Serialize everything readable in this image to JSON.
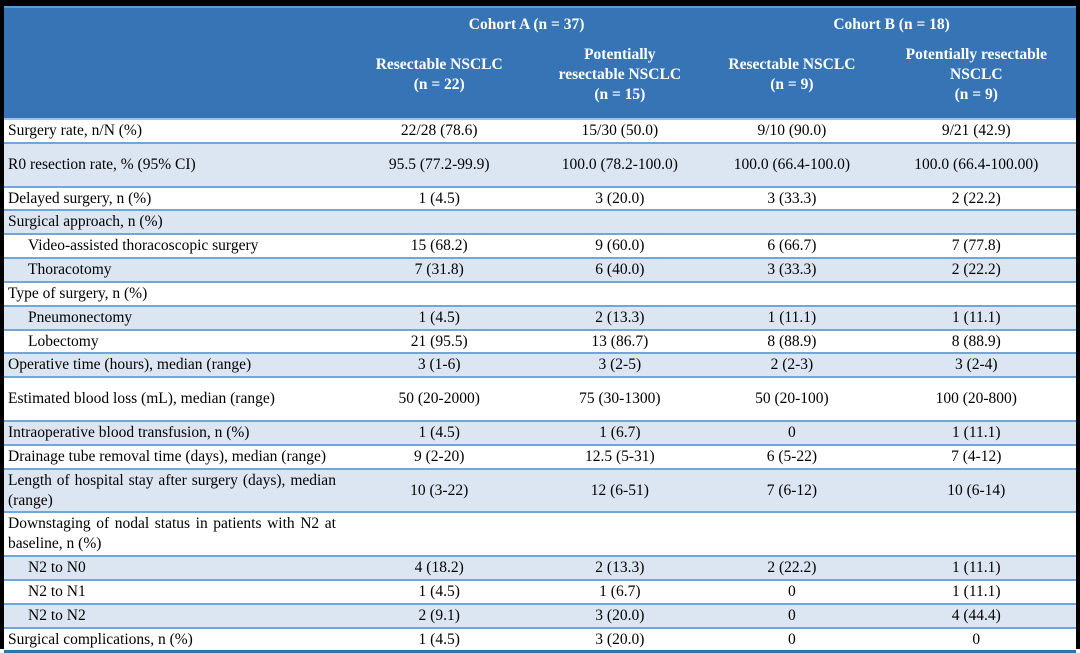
{
  "table": {
    "header": {
      "groups": [
        {
          "label": "Cohort A (n = 37)"
        },
        {
          "label": "Cohort B (n = 18)"
        }
      ],
      "columns": [
        {
          "label": "Resectable NSCLC (n = 22)",
          "lines": [
            "Resectable NSCLC",
            "(n = 22)"
          ]
        },
        {
          "label": "Potentially resectable NSCLC (n = 15)",
          "lines": [
            "Potentially",
            "resectable NSCLC",
            "(n = 15)"
          ]
        },
        {
          "label": "Resectable NSCLC (n = 9)",
          "lines": [
            "Resectable NSCLC",
            "(n = 9)"
          ]
        },
        {
          "label": "Potentially resectable NSCLC (n = 9)",
          "lines": [
            "Potentially resectable",
            "NSCLC",
            "(n = 9)"
          ]
        }
      ]
    },
    "rows": [
      {
        "label": "Surgery rate, n/N (%)",
        "values": [
          "22/28 (78.6)",
          "15/30 (50.0)",
          "9/10 (90.0)",
          "9/21 (42.9)"
        ],
        "shaded": false,
        "indent": false,
        "tall": false
      },
      {
        "label": "R0 resection rate, % (95% CI)",
        "values": [
          "95.5 (77.2-99.9)",
          "100.0 (78.2-100.0)",
          "100.0 (66.4-100.0)",
          "100.0 (66.4-100.00)"
        ],
        "shaded": true,
        "indent": false,
        "tall": true
      },
      {
        "label": "Delayed surgery, n (%)",
        "values": [
          "1 (4.5)",
          "3 (20.0)",
          "3 (33.3)",
          "2 (22.2)"
        ],
        "shaded": false,
        "indent": false,
        "tall": false
      },
      {
        "label": "Surgical approach, n (%)",
        "values": [
          "",
          "",
          "",
          ""
        ],
        "shaded": true,
        "indent": false,
        "tall": false
      },
      {
        "label": "Video-assisted thoracoscopic surgery",
        "values": [
          "15 (68.2)",
          "9 (60.0)",
          "6 (66.7)",
          "7 (77.8)"
        ],
        "shaded": false,
        "indent": true,
        "tall": false
      },
      {
        "label": "Thoracotomy",
        "values": [
          "7 (31.8)",
          "6 (40.0)",
          "3 (33.3)",
          "2 (22.2)"
        ],
        "shaded": true,
        "indent": true,
        "tall": false
      },
      {
        "label": "Type of surgery, n (%)",
        "values": [
          "",
          "",
          "",
          ""
        ],
        "shaded": false,
        "indent": false,
        "tall": false
      },
      {
        "label": "Pneumonectomy",
        "values": [
          "1 (4.5)",
          "2 (13.3)",
          "1 (11.1)",
          "1 (11.1)"
        ],
        "shaded": true,
        "indent": true,
        "tall": false
      },
      {
        "label": "Lobectomy",
        "values": [
          "21 (95.5)",
          "13 (86.7)",
          "8 (88.9)",
          "8 (88.9)"
        ],
        "shaded": false,
        "indent": true,
        "tall": false
      },
      {
        "label": "Operative time (hours), median (range)",
        "values": [
          "3 (1-6)",
          "3 (2-5)",
          "2 (2-3)",
          "3 (2-4)"
        ],
        "shaded": true,
        "indent": false,
        "tall": false
      },
      {
        "label": "Estimated blood loss (mL), median (range)",
        "values": [
          "50 (20-2000)",
          "75 (30-1300)",
          "50 (20-100)",
          "100 (20-800)"
        ],
        "shaded": false,
        "indent": false,
        "tall": true
      },
      {
        "label": "Intraoperative blood transfusion, n (%)",
        "values": [
          "1 (4.5)",
          "1 (6.7)",
          "0",
          "1 (11.1)"
        ],
        "shaded": true,
        "indent": false,
        "tall": false
      },
      {
        "label": "Drainage tube removal time (days), median (range)",
        "values": [
          "9 (2-20)",
          "12.5 (5-31)",
          "6 (5-22)",
          "7 (4-12)"
        ],
        "shaded": false,
        "indent": false,
        "tall": false
      },
      {
        "label": "Length of hospital stay after surgery (days), median (range)",
        "values": [
          "10 (3-22)",
          "12 (6-51)",
          "7 (6-12)",
          "10 (6-14)"
        ],
        "shaded": true,
        "indent": false,
        "tall": false
      },
      {
        "label": "Downstaging of nodal status in patients with N2 at baseline, n (%)",
        "values": [
          "",
          "",
          "",
          ""
        ],
        "shaded": false,
        "indent": false,
        "tall": false
      },
      {
        "label": "N2 to N0",
        "values": [
          "4 (18.2)",
          "2 (13.3)",
          "2 (22.2)",
          "1 (11.1)"
        ],
        "shaded": true,
        "indent": true,
        "tall": false
      },
      {
        "label": "N2 to N1",
        "values": [
          "1 (4.5)",
          "1 (6.7)",
          "0",
          "1 (11.1)"
        ],
        "shaded": false,
        "indent": true,
        "tall": false
      },
      {
        "label": "N2 to N2",
        "values": [
          "2 (9.1)",
          "3 (20.0)",
          "0",
          "4 (44.4)"
        ],
        "shaded": true,
        "indent": true,
        "tall": false
      },
      {
        "label": "Surgical complications, n (%)",
        "values": [
          "1 (4.5)",
          "3 (20.0)",
          "0",
          "0"
        ],
        "shaded": false,
        "indent": false,
        "tall": false
      }
    ]
  },
  "colors": {
    "header_bg": "#3774B5",
    "header_text": "#FFFFFF",
    "band_row_bg": "#DCE6F2",
    "grid_line": "#6FA6DB",
    "header_top_line": "#5B9BD5",
    "bottom_line": "#2E74B5",
    "frame": "#000000",
    "body_text": "#000000"
  }
}
